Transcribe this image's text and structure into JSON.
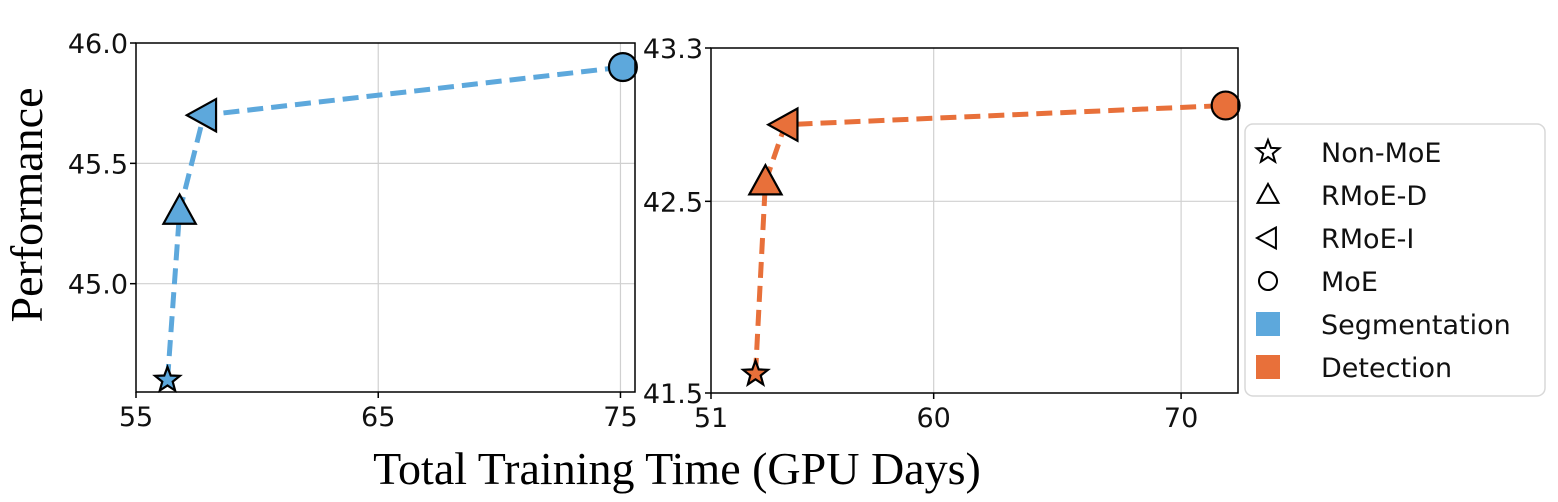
{
  "figure": {
    "ylabel": "Performance",
    "xlabel": "Total Training Time (GPU Days)"
  },
  "colors": {
    "Segmentation": "#5DA8DC",
    "Detection": "#E8703A",
    "grid": "#d0d0d0",
    "marker_edge": "#000000"
  },
  "chart_data": [
    {
      "type": "line",
      "title": "",
      "xlabel": "",
      "ylabel": "Performance",
      "xlim": [
        55,
        75.6
      ],
      "ylim": [
        44.55,
        46.0
      ],
      "xticks": [
        55,
        65,
        75
      ],
      "xtick_labels": [
        "55",
        "65",
        "75"
      ],
      "yticks": [
        45.0,
        45.5,
        46.0
      ],
      "ytick_labels": [
        "45.0",
        "45.5",
        "46.0"
      ],
      "grid": true,
      "series": [
        {
          "name": "Segmentation",
          "line_style": "dashed",
          "x": [
            56.3,
            56.8,
            57.8,
            75.1
          ],
          "y": [
            44.6,
            45.3,
            45.7,
            45.9
          ],
          "markers": [
            "star",
            "triangle-up",
            "triangle-left",
            "circle"
          ]
        }
      ]
    },
    {
      "type": "line",
      "title": "",
      "xlabel": "",
      "ylabel": "",
      "xlim": [
        51,
        72.3
      ],
      "ylim": [
        41.5,
        43.3
      ],
      "xticks": [
        51,
        60,
        70
      ],
      "xtick_labels": [
        "51",
        "60",
        "70"
      ],
      "yticks": [
        41.5,
        42.5,
        43.3
      ],
      "ytick_labels": [
        "41.5",
        "42.5",
        "43.3"
      ],
      "grid": true,
      "series": [
        {
          "name": "Detection",
          "line_style": "dashed",
          "x": [
            52.8,
            53.2,
            54.0,
            71.8
          ],
          "y": [
            41.6,
            42.6,
            42.9,
            43.0
          ],
          "markers": [
            "star",
            "triangle-up",
            "triangle-left",
            "circle"
          ]
        }
      ]
    }
  ],
  "legend": {
    "placement": "right",
    "items": [
      {
        "label": "Non-MoE",
        "symbol": "star"
      },
      {
        "label": "RMoE-D",
        "symbol": "triangle-up"
      },
      {
        "label": "RMoE-I",
        "symbol": "triangle-left"
      },
      {
        "label": "MoE",
        "symbol": "circle"
      },
      {
        "label": "Segmentation",
        "symbol": "square",
        "color_key": "Segmentation"
      },
      {
        "label": "Detection",
        "symbol": "square",
        "color_key": "Detection"
      }
    ]
  }
}
